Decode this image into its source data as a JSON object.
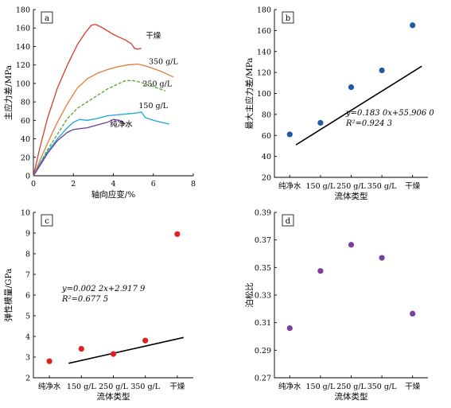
{
  "chart_data": [
    {
      "panel": "a",
      "type": "line",
      "xlabel": "轴向应变/%",
      "ylabel": "主应力差/MPa",
      "xlim": [
        0,
        8
      ],
      "ylim": [
        0,
        180
      ],
      "xticks": [
        0,
        2,
        4,
        6,
        8
      ],
      "yticks": [
        0,
        20,
        40,
        60,
        80,
        100,
        120,
        140,
        160,
        180
      ],
      "series": [
        {
          "name": "干燥",
          "color": "#d93a2b",
          "dash": "solid",
          "x": [
            0,
            0.3,
            0.7,
            1.2,
            1.7,
            2.2,
            2.6,
            2.9,
            3.1,
            3.4,
            3.7,
            4.0,
            4.3,
            4.6,
            4.9,
            5.0,
            5.05,
            5.2,
            5.4
          ],
          "y": [
            0,
            28,
            62,
            95,
            120,
            142,
            155,
            163,
            164,
            161,
            157,
            153,
            150,
            147,
            143,
            140,
            138,
            137,
            138
          ]
        },
        {
          "name": "350 g/L",
          "color": "#e87b33",
          "dash": "solid",
          "x": [
            0,
            0.3,
            0.7,
            1.2,
            1.7,
            2.2,
            2.7,
            3.2,
            3.7,
            4.2,
            4.7,
            5.2,
            5.6,
            6.0,
            6.4,
            7.0
          ],
          "y": [
            0,
            15,
            35,
            58,
            78,
            95,
            105,
            111,
            115,
            118,
            120,
            121,
            119,
            116,
            113,
            107
          ]
        },
        {
          "name": "250 g/L",
          "color": "#5aa02c",
          "dash": "dashed",
          "x": [
            0,
            0.3,
            0.7,
            1.2,
            1.7,
            2.2,
            2.7,
            3.2,
            3.7,
            4.2,
            4.6,
            5.0,
            5.4,
            5.8,
            6.2,
            6.6
          ],
          "y": [
            0,
            12,
            28,
            45,
            62,
            73,
            80,
            87,
            94,
            99,
            103,
            103,
            101,
            98,
            95,
            92
          ]
        },
        {
          "name": "150 g/L",
          "color": "#1aa6d8",
          "dash": "solid",
          "x": [
            0,
            0.3,
            0.7,
            1.2,
            1.7,
            2.0,
            2.3,
            2.7,
            3.2,
            3.7,
            4.2,
            4.7,
            5.2,
            5.4,
            5.6,
            6.0,
            6.4,
            6.8
          ],
          "y": [
            0,
            12,
            26,
            40,
            52,
            58,
            61,
            60,
            62,
            65,
            66,
            67,
            68,
            69,
            63,
            60,
            58,
            56
          ]
        },
        {
          "name": "纯净水",
          "color": "#6a3d9a",
          "dash": "solid",
          "x": [
            0,
            0.3,
            0.7,
            1.2,
            1.7,
            2.0,
            2.3,
            2.7,
            3.2,
            3.7,
            4.0,
            4.3,
            4.6
          ],
          "y": [
            0,
            10,
            24,
            38,
            47,
            50,
            51,
            52,
            55,
            58,
            61,
            60,
            56
          ]
        }
      ],
      "annotations": [
        {
          "text": "干燥",
          "x": 6.0,
          "y": 149
        },
        {
          "text": "350 g/L",
          "x": 6.5,
          "y": 121
        },
        {
          "text": "250 g/L",
          "x": 6.2,
          "y": 97
        },
        {
          "text": "150 g/L",
          "x": 6.0,
          "y": 73
        },
        {
          "text": "纯净水",
          "x": 4.4,
          "y": 53
        }
      ]
    },
    {
      "panel": "b",
      "type": "scatter",
      "xlabel": "流体类型",
      "ylabel": "最大主应力差/MPa",
      "categories": [
        "纯净水",
        "150 g/L",
        "250 g/L",
        "350 g/L",
        "干燥"
      ],
      "values": [
        61,
        72,
        106,
        122,
        165
      ],
      "ylim": [
        20,
        180
      ],
      "yticks": [
        20,
        40,
        60,
        80,
        100,
        120,
        140,
        160,
        180
      ],
      "color": "#1f5aa6",
      "fit": {
        "from": 0.2,
        "to": 4.3,
        "y_from": 51,
        "y_to": 126
      },
      "equation": "y=0.183 0x+55.906 0",
      "r2": "R²=0.924 3"
    },
    {
      "panel": "c",
      "type": "scatter",
      "xlabel": "流体类型",
      "ylabel": "弹性模量/GPa",
      "categories": [
        "纯净水",
        "150 g/L",
        "250 g/L",
        "350 g/L",
        "干燥"
      ],
      "values": [
        2.8,
        3.4,
        3.15,
        3.8,
        8.95
      ],
      "ylim": [
        2,
        10
      ],
      "yticks": [
        2,
        3,
        4,
        5,
        6,
        7,
        8,
        9,
        10
      ],
      "color": "#e02020",
      "fit": {
        "from": 0.6,
        "to": 4.2,
        "y_from": 2.7,
        "y_to": 3.95
      },
      "equation": "y=0.002 2x+2.917 9",
      "r2": "R²=0.677 5"
    },
    {
      "panel": "d",
      "type": "scatter",
      "xlabel": "流体类型",
      "ylabel": "泊松比",
      "categories": [
        "纯净水",
        "150 g/L",
        "250 g/L",
        "350 g/L",
        "干燥"
      ],
      "values": [
        0.306,
        0.3475,
        0.3665,
        0.357,
        0.3165
      ],
      "ylim": [
        0.27,
        0.39
      ],
      "yticks": [
        "0.27",
        "0.29",
        "0.31",
        "0.33",
        "0.35",
        "0.37",
        "0.39"
      ],
      "color": "#7b3f9e"
    }
  ]
}
